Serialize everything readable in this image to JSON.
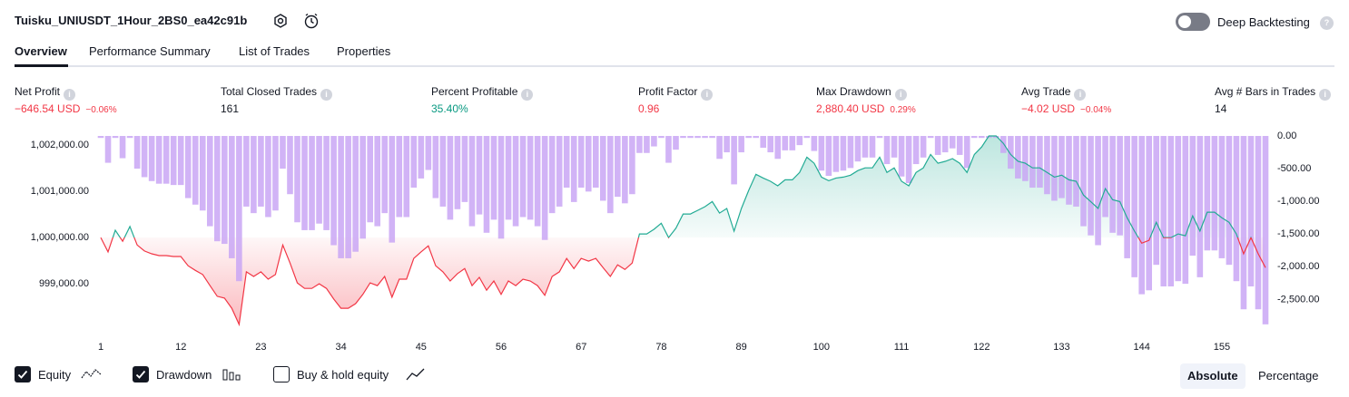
{
  "header": {
    "title": "Tuisku_UNIUSDT_1Hour_2BS0_ea42c91b",
    "deep_backtesting": "Deep Backtesting",
    "deep_backtesting_on": false
  },
  "tabs": {
    "items": [
      "Overview",
      "Performance Summary",
      "List of Trades",
      "Properties"
    ],
    "active": 0
  },
  "metrics": [
    {
      "label": "Net Profit",
      "value": "−646.54 USD",
      "change": "−0.06%",
      "tone": "negative"
    },
    {
      "label": "Total Closed Trades",
      "value": "161"
    },
    {
      "label": "Percent Profitable",
      "value": "35.40%",
      "tone": "positive"
    },
    {
      "label": "Profit Factor",
      "value": "0.96",
      "tone": "negative"
    },
    {
      "label": "Max Drawdown",
      "value": "2,880.40 USD",
      "change": "0.29%",
      "tone": "negative"
    },
    {
      "label": "Avg Trade",
      "value": "−4.02 USD",
      "change": "−0.04%",
      "tone": "negative"
    },
    {
      "label": "Avg # Bars in Trades",
      "value": "14"
    }
  ],
  "chart_data": {
    "type": "line",
    "x": [
      1,
      2,
      3,
      4,
      5,
      6,
      7,
      8,
      9,
      10,
      11,
      12,
      13,
      14,
      15,
      16,
      17,
      18,
      19,
      20,
      21,
      22,
      23,
      24,
      25,
      26,
      27,
      28,
      29,
      30,
      31,
      32,
      33,
      34,
      35,
      36,
      37,
      38,
      39,
      40,
      41,
      42,
      43,
      44,
      45,
      46,
      47,
      48,
      49,
      50,
      51,
      52,
      53,
      54,
      55,
      56,
      57,
      58,
      59,
      60,
      61,
      62,
      63,
      64,
      65,
      66,
      67,
      68,
      69,
      70,
      71,
      72,
      73,
      74,
      75,
      76,
      77,
      78,
      79,
      80,
      81,
      82,
      83,
      84,
      85,
      86,
      87,
      88,
      89,
      90,
      91,
      92,
      93,
      94,
      95,
      96,
      97,
      98,
      99,
      100,
      101,
      102,
      103,
      104,
      105,
      106,
      107,
      108,
      109,
      110,
      111,
      112,
      113,
      114,
      115,
      116,
      117,
      118,
      119,
      120,
      121,
      122,
      123,
      124,
      125,
      126,
      127,
      128,
      129,
      130,
      131,
      132,
      133,
      134,
      135,
      136,
      137,
      138,
      139,
      140,
      141,
      142,
      143,
      144,
      145,
      146,
      147,
      148,
      149,
      150,
      151,
      152,
      153,
      154,
      155,
      156,
      157,
      158,
      159,
      160,
      161
    ],
    "xlim": [
      1,
      161
    ],
    "xticks": [
      1,
      12,
      23,
      34,
      45,
      56,
      67,
      78,
      89,
      100,
      111,
      122,
      133,
      144,
      155
    ],
    "ylim": [
      998080,
      1002200
    ],
    "yticks": [
      {
        "value": 999000,
        "label": "999,000.00"
      },
      {
        "value": 1000000,
        "label": "1,000,000.00"
      },
      {
        "value": 1001000,
        "label": "1,001,000.00"
      },
      {
        "value": 1002000,
        "label": "1,002,000.00"
      }
    ],
    "y2lim": [
      -2910,
      0
    ],
    "y2ticks": [
      {
        "value": 0,
        "label": "0.00"
      },
      {
        "value": -500,
        "label": "-500.00"
      },
      {
        "value": -1000,
        "label": "-1,000.00"
      },
      {
        "value": -1500,
        "label": "-1,500.00"
      },
      {
        "value": -2000,
        "label": "-2,000.00"
      },
      {
        "value": -2500,
        "label": "-2,500.00"
      }
    ],
    "series": [
      {
        "name": "Equity",
        "type": "line",
        "color": "#22ab94",
        "loss_color": "#f23645",
        "checked": true,
        "values": [
          1000000,
          999690,
          1000160,
          999920,
          1000240,
          999840,
          999710,
          999650,
          999610,
          999610,
          999590,
          999590,
          999390,
          999290,
          999200,
          998960,
          998730,
          998690,
          998470,
          998120,
          999260,
          999160,
          999260,
          999100,
          999200,
          999840,
          999450,
          999020,
          998900,
          998900,
          999000,
          998900,
          998670,
          998470,
          998470,
          998570,
          998770,
          999020,
          998960,
          999160,
          998710,
          999100,
          999100,
          999550,
          999690,
          999820,
          999390,
          999260,
          999060,
          999220,
          999330,
          998960,
          999140,
          998860,
          999060,
          998770,
          999060,
          998960,
          999100,
          999060,
          998960,
          998750,
          999160,
          999260,
          999550,
          999330,
          999550,
          999490,
          999550,
          999350,
          999160,
          999410,
          999310,
          999450,
          1000080,
          1000080,
          1000180,
          1000310,
          1000000,
          1000200,
          1000510,
          1000510,
          1000590,
          1000670,
          1000780,
          1000530,
          1000630,
          1000140,
          1000630,
          1001020,
          1001370,
          1001290,
          1001220,
          1001120,
          1001250,
          1001250,
          1001410,
          1001740,
          1001610,
          1001310,
          1001230,
          1001290,
          1001310,
          1001350,
          1001450,
          1001510,
          1001510,
          1001740,
          1001410,
          1001510,
          1001220,
          1001120,
          1001410,
          1001510,
          1001800,
          1001610,
          1001650,
          1001710,
          1001610,
          1001410,
          1001800,
          1001960,
          1002200,
          1002200,
          1002040,
          1001800,
          1001650,
          1001610,
          1001510,
          1001510,
          1001410,
          1001310,
          1001350,
          1001250,
          1001220,
          1000920,
          1000780,
          1000630,
          1001060,
          1000820,
          1000780,
          1000430,
          1000140,
          999880,
          999940,
          1000330,
          1000000,
          1000000,
          1000080,
          1000040,
          1000470,
          1000140,
          1000550,
          1000550,
          1000430,
          1000330,
          1000080,
          999650,
          1000000,
          999650,
          999350
        ]
      },
      {
        "name": "Drawdown",
        "type": "bar",
        "axis": "y2",
        "color": "#c9a6f5",
        "checked": true,
        "values": [
          -30,
          -410,
          -30,
          -340,
          -30,
          -500,
          -630,
          -690,
          -730,
          -730,
          -750,
          -750,
          -950,
          -1050,
          -1140,
          -1380,
          -1610,
          -1650,
          -1870,
          -2220,
          -1080,
          -1180,
          -1080,
          -1240,
          -1140,
          -500,
          -890,
          -1320,
          -1440,
          -1440,
          -1340,
          -1440,
          -1670,
          -1870,
          -1870,
          -1770,
          -1570,
          -1320,
          -1380,
          -1180,
          -1630,
          -1240,
          -1240,
          -790,
          -650,
          -520,
          -950,
          -1080,
          -1280,
          -1120,
          -1010,
          -1380,
          -1200,
          -1480,
          -1280,
          -1570,
          -1280,
          -1380,
          -1240,
          -1280,
          -1380,
          -1590,
          -1180,
          -1080,
          -790,
          -1010,
          -790,
          -850,
          -790,
          -990,
          -1180,
          -930,
          -1030,
          -890,
          -260,
          -260,
          -160,
          -30,
          -410,
          -210,
          -30,
          -30,
          -30,
          -30,
          -30,
          -350,
          -250,
          -740,
          -250,
          -30,
          -30,
          -180,
          -250,
          -350,
          -220,
          -220,
          -140,
          -30,
          -230,
          -530,
          -610,
          -550,
          -530,
          -490,
          -390,
          -330,
          -330,
          -30,
          -430,
          -330,
          -620,
          -720,
          -430,
          -330,
          -30,
          -290,
          -250,
          -190,
          -290,
          -490,
          -30,
          -30,
          -30,
          -30,
          -260,
          -500,
          -650,
          -690,
          -790,
          -790,
          -890,
          -990,
          -950,
          -1050,
          -1080,
          -1380,
          -1520,
          -1670,
          -1240,
          -1480,
          -1520,
          -1870,
          -2160,
          -2420,
          -2360,
          -1970,
          -2300,
          -2300,
          -2220,
          -2260,
          -1830,
          -2160,
          -1750,
          -1750,
          -1870,
          -1970,
          -2220,
          -2650,
          -2300,
          -2650,
          -2880
        ]
      }
    ]
  },
  "options": {
    "buy_hold": {
      "label": "Buy & hold equity",
      "checked": false
    },
    "scale_modes": [
      "Absolute",
      "Percentage"
    ],
    "active_mode": 0
  }
}
